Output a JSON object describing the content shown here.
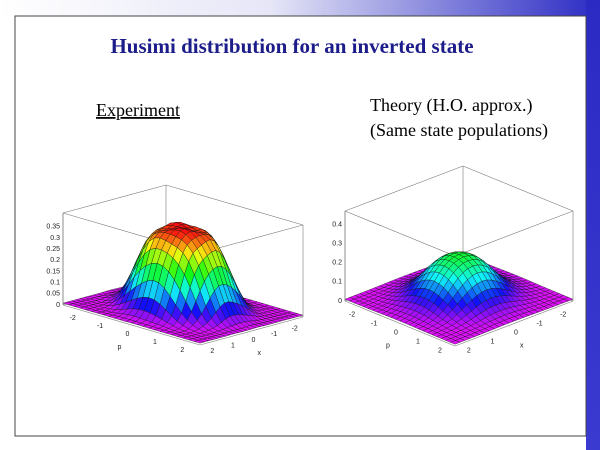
{
  "header": {
    "title": "Husimi distribution for an inverted state"
  },
  "panels": [
    {
      "heading": [
        "Experiment"
      ],
      "z_ticks": [
        "0",
        "0.05",
        "0.1",
        "0.15",
        "0.2",
        "0.25",
        "0.3",
        "0.35"
      ],
      "p_ticks": [
        "-2",
        "-1",
        "0",
        "1",
        "2"
      ],
      "p_label": "p",
      "x_ticks": [
        "2",
        "1",
        "0",
        "-1",
        "-2"
      ],
      "x_label": "x"
    },
    {
      "heading": [
        "Theory (H.O. approx.)",
        "(Same state populations)"
      ],
      "z_ticks": [
        "0",
        "0.1",
        "0.2",
        "0.3",
        "0.4"
      ],
      "p_ticks": [
        "-2",
        "-1",
        "0",
        "1",
        "2"
      ],
      "p_label": "p",
      "x_ticks": [
        "2",
        "1",
        "0",
        "-1",
        "-2"
      ],
      "x_label": "x"
    }
  ]
}
